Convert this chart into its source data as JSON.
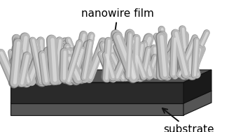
{
  "bg_color": "#ffffff",
  "substrate_dark": "#2a2a2a",
  "substrate_mid": "#555555",
  "substrate_light": "#888888",
  "substrate_top": "#aaaaaa",
  "nanowire_body": "#b8b8b8",
  "nanowire_edge": "#787878",
  "nanowire_hi": "#e0e0e0",
  "label_nanowire": "nanowire film",
  "label_substrate": "substrate",
  "label_fontsize": 11,
  "arrow_color": "#111111",
  "fig_width": 3.37,
  "fig_height": 1.89,
  "dpi": 100
}
